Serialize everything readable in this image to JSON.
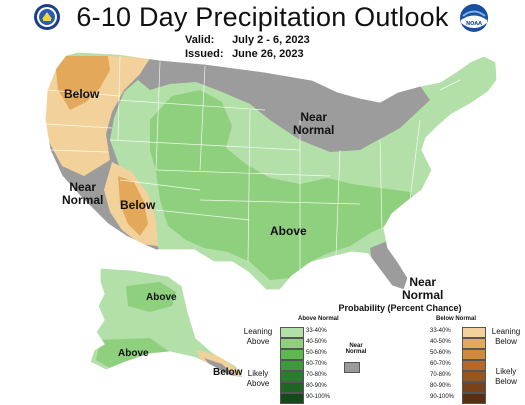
{
  "title": "6-10 Day Precipitation Outlook",
  "valid": {
    "label": "Valid:",
    "value": "July 2 - 6, 2023"
  },
  "issued": {
    "label": "Issued:",
    "value": "June 26, 2023"
  },
  "map_labels": {
    "below_northwest": "Below",
    "near_normal_north": [
      "Near",
      "Normal"
    ],
    "near_normal_west": [
      "Near",
      "Normal"
    ],
    "below_southwest": "Below",
    "above_central": "Above",
    "near_normal_florida": [
      "Near",
      "Normal"
    ],
    "above_alaska_north": "Above",
    "above_alaska_south": "Above",
    "below_alaska": "Below"
  },
  "legend": {
    "title": "Probability (Percent Chance)",
    "above_header": "Above Normal",
    "below_header": "Below Normal",
    "near_normal": [
      "Near",
      "Normal"
    ],
    "leaning_above": [
      "Leaning",
      "Above"
    ],
    "likely_above": [
      "Likely",
      "Above"
    ],
    "leaning_below": [
      "Leaning",
      "Below"
    ],
    "likely_below": [
      "Likely",
      "Below"
    ],
    "ranges": [
      "33-40%",
      "40-50%",
      "50-60%",
      "60-70%",
      "70-80%",
      "80-90%",
      "90-100%"
    ],
    "above_colors": [
      "#b3dfa8",
      "#8fd07f",
      "#5fb74f",
      "#3d9a3a",
      "#2a7d2e",
      "#1f6325",
      "#144a1a"
    ],
    "below_colors": [
      "#f2d29a",
      "#e3a85a",
      "#cf8a3c",
      "#b5682a",
      "#98561f",
      "#7a4218",
      "#5a2f10"
    ],
    "near_normal_color": "#9a9a9a"
  },
  "colors": {
    "near_normal": "#9c9c9c",
    "above_33_40": "#b3dfa8",
    "above_40_50": "#8fd07f",
    "below_33_40": "#f2d29a",
    "below_40_50": "#e3a85a",
    "border": "#ffffff"
  },
  "logos": [
    "department-of-commerce-seal",
    "noaa-logo"
  ]
}
